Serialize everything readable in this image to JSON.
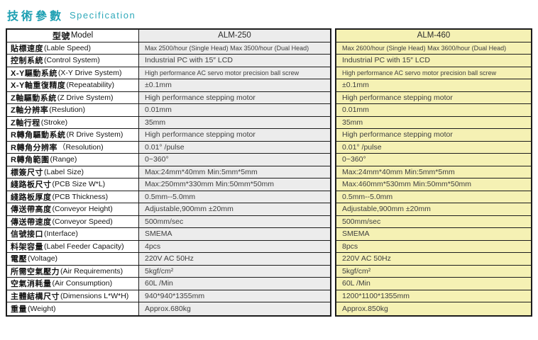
{
  "title": {
    "zh": "技術參數",
    "en": "Specification"
  },
  "colors": {
    "accent_teal": "#1d9fb2",
    "alm250_column_bg": "#ececec",
    "alm460_column_bg": "#f5f1b4",
    "border": "#1c1c1c"
  },
  "table": {
    "header": {
      "model_zh": "型號",
      "model_en": "Model",
      "col1": "ALM-250",
      "col2": "ALM-460"
    },
    "rows": [
      {
        "label_zh": "貼標速度",
        "label_en": "(Lable Speed)",
        "alm250": "Max 2500/hour (Single Head)  Max 3500/hour (Dual Head)",
        "alm460": "Max 2600/hour (Single Head)  Max 3600/hour (Dual Head)"
      },
      {
        "label_zh": "控制系統",
        "label_en": "(Control System)",
        "alm250": "Industrial PC with 15″ LCD",
        "alm460": "Industrial PC with 15″ LCD"
      },
      {
        "label_zh": "X-Y驅動系統",
        "label_en": "(X-Y Drive System)",
        "alm250": "High performance AC servo motor precision ball screw",
        "alm460": "High performance AC servo motor precision ball screw"
      },
      {
        "label_zh": "X-Y軸重復精度",
        "label_en": "(Repeatability)",
        "alm250": "±0.1mm",
        "alm460": "±0.1mm"
      },
      {
        "label_zh": "Z軸驅動系統",
        "label_en": "(Z Drive System)",
        "alm250": "High performance stepping motor",
        "alm460": "High performance stepping motor"
      },
      {
        "label_zh": "Z軸分辨率",
        "label_en": "(Reslution)",
        "alm250": "0.01mm",
        "alm460": "0.01mm"
      },
      {
        "label_zh": "Z軸行程",
        "label_en": "(Stroke)",
        "alm250": "35mm",
        "alm460": "35mm"
      },
      {
        "label_zh": "R轉角驅動系統",
        "label_en": "(R Drive System)",
        "alm250": "High performance stepping motor",
        "alm460": "High performance stepping motor"
      },
      {
        "label_zh": "R轉角分辨率",
        "label_en": "（Resolution)",
        "alm250": "0.01° /pulse",
        "alm460": "0.01° /pulse"
      },
      {
        "label_zh": "R轉角範圍",
        "label_en": "(Range)",
        "alm250": "0~360°",
        "alm460": "0~360°"
      },
      {
        "label_zh": "標簽尺寸",
        "label_en": "(Label Size)",
        "alm250": "Max:24mm*40mm   Min:5mm*5mm",
        "alm460": "Max:24mm*40mm   Min:5mm*5mm"
      },
      {
        "label_zh": "綫路板尺寸",
        "label_en": "(PCB Size W*L)",
        "alm250": "Max:250mm*330mm  Min:50mm*50mm",
        "alm460": "Max:460mm*530mm Min:50mm*50mm"
      },
      {
        "label_zh": "綫路板厚度",
        "label_en": "(PCB Thickness)",
        "alm250": "0.5mm--5.0mm",
        "alm460": "0.5mm--5.0mm"
      },
      {
        "label_zh": "傳送帶高度",
        "label_en": "(Conveyor Height)",
        "alm250": "Adjustable,900mm ±20mm",
        "alm460": "Adjustable,900mm ±20mm"
      },
      {
        "label_zh": "傳送帶速度",
        "label_en": "(Conveyor Speed)",
        "alm250": "500mm/sec",
        "alm460": "500mm/sec"
      },
      {
        "label_zh": "信號接口",
        "label_en": "(Interface)",
        "alm250": "SMEMA",
        "alm460": "SMEMA"
      },
      {
        "label_zh": "料架容量",
        "label_en": "(Label Feeder Capacity)",
        "alm250": "4pcs",
        "alm460": "8pcs"
      },
      {
        "label_zh": "電壓",
        "label_en": "(Voltage)",
        "alm250": "220V AC  50Hz",
        "alm460": "220V AC  50Hz"
      },
      {
        "label_zh": "所需空氣壓力",
        "label_en": "(Air Requirements)",
        "alm250": "5kgf/cm²",
        "alm460": "5kgf/cm²"
      },
      {
        "label_zh": "空氣消耗量",
        "label_en": "(Air Consumption)",
        "alm250": "60L /Min",
        "alm460": "60L /Min"
      },
      {
        "label_zh": "主體結構尺寸",
        "label_en": "(Dimensions L*W*H)",
        "alm250": "940*940*1355mm",
        "alm460": "1200*1100*1355mm"
      },
      {
        "label_zh": "重量",
        "label_en": "(Weight)",
        "alm250": "Approx.680kg",
        "alm460": "Approx.850kg"
      }
    ]
  }
}
